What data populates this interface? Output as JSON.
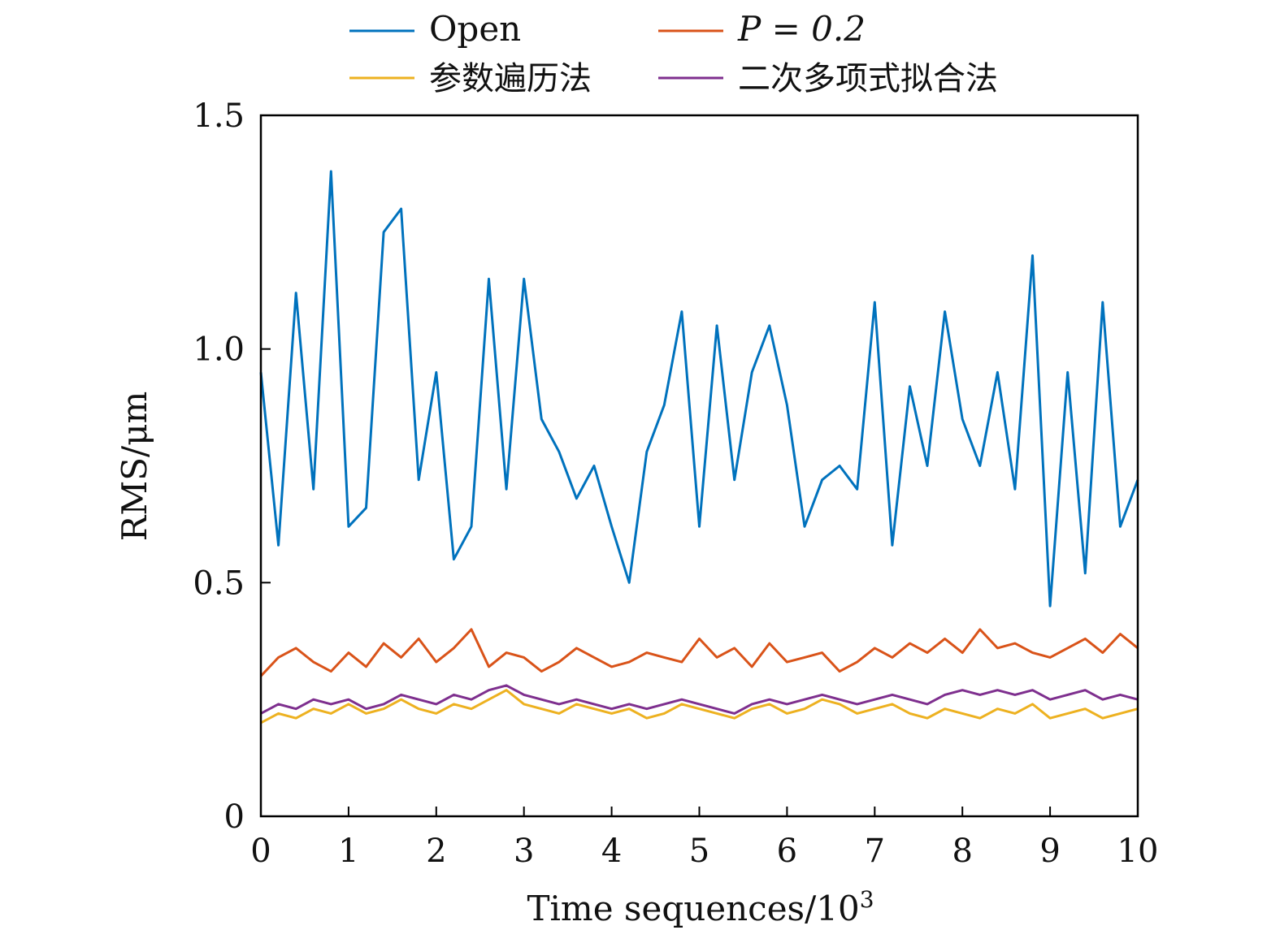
{
  "chart_data": {
    "type": "line",
    "title": "",
    "xlabel": "Time sequences/10",
    "xlabel_superscript": "3",
    "ylabel": "RMS/μm",
    "xlim": [
      0,
      10
    ],
    "ylim": [
      0,
      1.5
    ],
    "x_ticks": [
      "0",
      "1",
      "2",
      "3",
      "4",
      "5",
      "6",
      "7",
      "8",
      "9",
      "10"
    ],
    "y_ticks": [
      "0",
      "0.5",
      "1.0",
      "1.5"
    ],
    "grid": false,
    "legend_position": "top",
    "x": [
      0,
      0.2,
      0.4,
      0.6,
      0.8,
      1,
      1.2,
      1.4,
      1.6,
      1.8,
      2,
      2.2,
      2.4,
      2.6,
      2.8,
      3,
      3.2,
      3.4,
      3.6,
      3.8,
      4,
      4.2,
      4.4,
      4.6,
      4.8,
      5,
      5.2,
      5.4,
      5.6,
      5.8,
      6,
      6.2,
      6.4,
      6.6,
      6.8,
      7,
      7.2,
      7.4,
      7.6,
      7.8,
      8,
      8.2,
      8.4,
      8.6,
      8.8,
      9,
      9.2,
      9.4,
      9.6,
      9.8,
      10
    ],
    "series": [
      {
        "name": "Open",
        "color": "#0072BD",
        "values": [
          0.95,
          0.58,
          1.12,
          0.7,
          1.38,
          0.62,
          0.66,
          1.25,
          1.3,
          0.72,
          0.95,
          0.55,
          0.62,
          1.15,
          0.7,
          1.15,
          0.85,
          0.78,
          0.68,
          0.75,
          0.62,
          0.5,
          0.78,
          0.88,
          1.08,
          0.62,
          1.05,
          0.72,
          0.95,
          1.05,
          0.88,
          0.62,
          0.72,
          0.75,
          0.7,
          1.1,
          0.58,
          0.92,
          0.75,
          1.08,
          0.85,
          0.75,
          0.95,
          0.7,
          1.2,
          0.45,
          0.95,
          0.52,
          1.1,
          0.62,
          0.72
        ]
      },
      {
        "name": "P = 0.2",
        "color": "#D95319",
        "values": [
          0.3,
          0.34,
          0.36,
          0.33,
          0.31,
          0.35,
          0.32,
          0.37,
          0.34,
          0.38,
          0.33,
          0.36,
          0.4,
          0.32,
          0.35,
          0.34,
          0.31,
          0.33,
          0.36,
          0.34,
          0.32,
          0.33,
          0.35,
          0.34,
          0.33,
          0.38,
          0.34,
          0.36,
          0.32,
          0.37,
          0.33,
          0.34,
          0.35,
          0.31,
          0.33,
          0.36,
          0.34,
          0.37,
          0.35,
          0.38,
          0.35,
          0.4,
          0.36,
          0.37,
          0.35,
          0.34,
          0.36,
          0.38,
          0.35,
          0.39,
          0.36
        ]
      },
      {
        "name": "参数遍历法",
        "color": "#EDB120",
        "values": [
          0.2,
          0.22,
          0.21,
          0.23,
          0.22,
          0.24,
          0.22,
          0.23,
          0.25,
          0.23,
          0.22,
          0.24,
          0.23,
          0.25,
          0.27,
          0.24,
          0.23,
          0.22,
          0.24,
          0.23,
          0.22,
          0.23,
          0.21,
          0.22,
          0.24,
          0.23,
          0.22,
          0.21,
          0.23,
          0.24,
          0.22,
          0.23,
          0.25,
          0.24,
          0.22,
          0.23,
          0.24,
          0.22,
          0.21,
          0.23,
          0.22,
          0.21,
          0.23,
          0.22,
          0.24,
          0.21,
          0.22,
          0.23,
          0.21,
          0.22,
          0.23
        ]
      },
      {
        "name": "二次多项式拟合法",
        "color": "#7E2F8E",
        "values": [
          0.22,
          0.24,
          0.23,
          0.25,
          0.24,
          0.25,
          0.23,
          0.24,
          0.26,
          0.25,
          0.24,
          0.26,
          0.25,
          0.27,
          0.28,
          0.26,
          0.25,
          0.24,
          0.25,
          0.24,
          0.23,
          0.24,
          0.23,
          0.24,
          0.25,
          0.24,
          0.23,
          0.22,
          0.24,
          0.25,
          0.24,
          0.25,
          0.26,
          0.25,
          0.24,
          0.25,
          0.26,
          0.25,
          0.24,
          0.26,
          0.27,
          0.26,
          0.27,
          0.26,
          0.27,
          0.25,
          0.26,
          0.27,
          0.25,
          0.26,
          0.25
        ]
      }
    ]
  }
}
